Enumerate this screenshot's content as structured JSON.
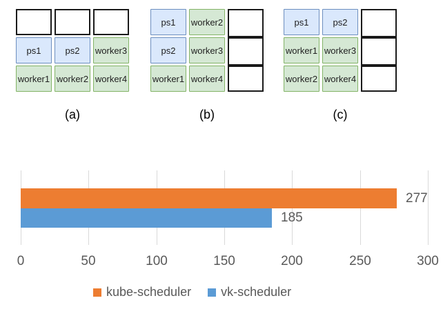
{
  "diagrams": {
    "cell_colors": {
      "ps": {
        "fill": "#dae8fc",
        "border": "#6c8ebf"
      },
      "worker": {
        "fill": "#d5e8d4",
        "border": "#82b366"
      },
      "empty": {
        "fill": "#ffffff",
        "border": "#1a1a1a"
      }
    },
    "groups": [
      {
        "label": "(a)",
        "columns": [
          {
            "cells": [
              {
                "text": "",
                "type": "empty"
              },
              {
                "text": "ps1",
                "type": "ps"
              },
              {
                "text": "worker1",
                "type": "worker"
              }
            ]
          },
          {
            "cells": [
              {
                "text": "",
                "type": "empty"
              },
              {
                "text": "ps2",
                "type": "ps"
              },
              {
                "text": "worker2",
                "type": "worker"
              }
            ]
          },
          {
            "cells": [
              {
                "text": "",
                "type": "empty"
              },
              {
                "text": "worker3",
                "type": "worker"
              },
              {
                "text": "worker4",
                "type": "worker"
              }
            ]
          }
        ]
      },
      {
        "label": "(b)",
        "columns": [
          {
            "cells": [
              {
                "text": "ps1",
                "type": "ps"
              },
              {
                "text": "ps2",
                "type": "ps"
              },
              {
                "text": "worker1",
                "type": "worker"
              }
            ]
          },
          {
            "cells": [
              {
                "text": "worker2",
                "type": "worker"
              },
              {
                "text": "worker3",
                "type": "worker"
              },
              {
                "text": "worker4",
                "type": "worker"
              }
            ]
          },
          {
            "cells": [
              {
                "text": "",
                "type": "empty"
              },
              {
                "text": "",
                "type": "empty"
              },
              {
                "text": "",
                "type": "empty"
              }
            ]
          }
        ]
      },
      {
        "label": "(c)",
        "columns": [
          {
            "cells": [
              {
                "text": "ps1",
                "type": "ps"
              },
              {
                "text": "worker1",
                "type": "worker"
              },
              {
                "text": "worker2",
                "type": "worker"
              }
            ]
          },
          {
            "cells": [
              {
                "text": "ps2",
                "type": "ps"
              },
              {
                "text": "worker3",
                "type": "worker"
              },
              {
                "text": "worker4",
                "type": "worker"
              }
            ]
          },
          {
            "cells": [
              {
                "text": "",
                "type": "empty"
              },
              {
                "text": "",
                "type": "empty"
              },
              {
                "text": "",
                "type": "empty"
              }
            ]
          }
        ]
      }
    ]
  },
  "chart_data": {
    "type": "bar",
    "orientation": "horizontal",
    "series": [
      {
        "name": "kube-scheduler",
        "value": 277,
        "data_label": "277",
        "color": "#ED7D31"
      },
      {
        "name": "vk-scheduler",
        "value": 185,
        "data_label": "185",
        "color": "#5B9BD5"
      }
    ],
    "xlim": [
      0,
      300
    ],
    "xticks": [
      "0",
      "50",
      "100",
      "150",
      "200",
      "250",
      "300"
    ],
    "title": "",
    "xlabel": "",
    "ylabel": "",
    "grid": true,
    "gridline_color": "#d9d9d9",
    "text_color": "#595959",
    "legend_position": "bottom"
  }
}
